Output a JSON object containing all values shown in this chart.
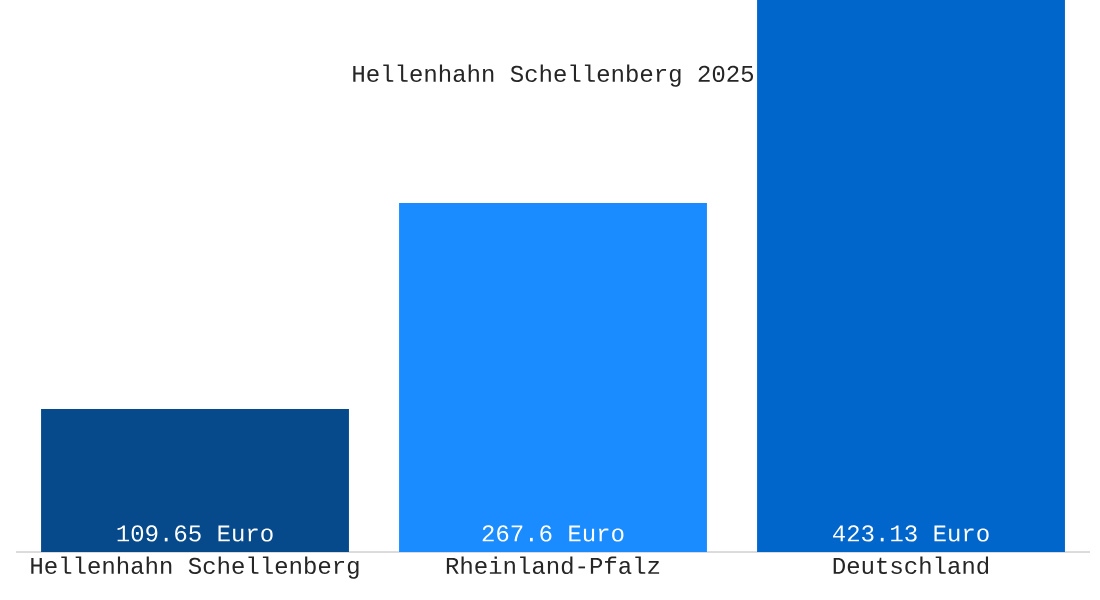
{
  "chart_data": {
    "type": "bar",
    "title": "Hellenhahn Schellenberg 2025",
    "categories": [
      "Hellenhahn Schellenberg",
      "Rheinland-Pfalz",
      "Deutschland"
    ],
    "values": [
      109.65,
      267.6,
      423.13
    ],
    "colors": [
      "#064a8c",
      "#1a8cff",
      "#0066cc"
    ],
    "value_labels": [
      "109.65 Euro",
      "267.6 Euro",
      "423.13 Euro"
    ]
  }
}
